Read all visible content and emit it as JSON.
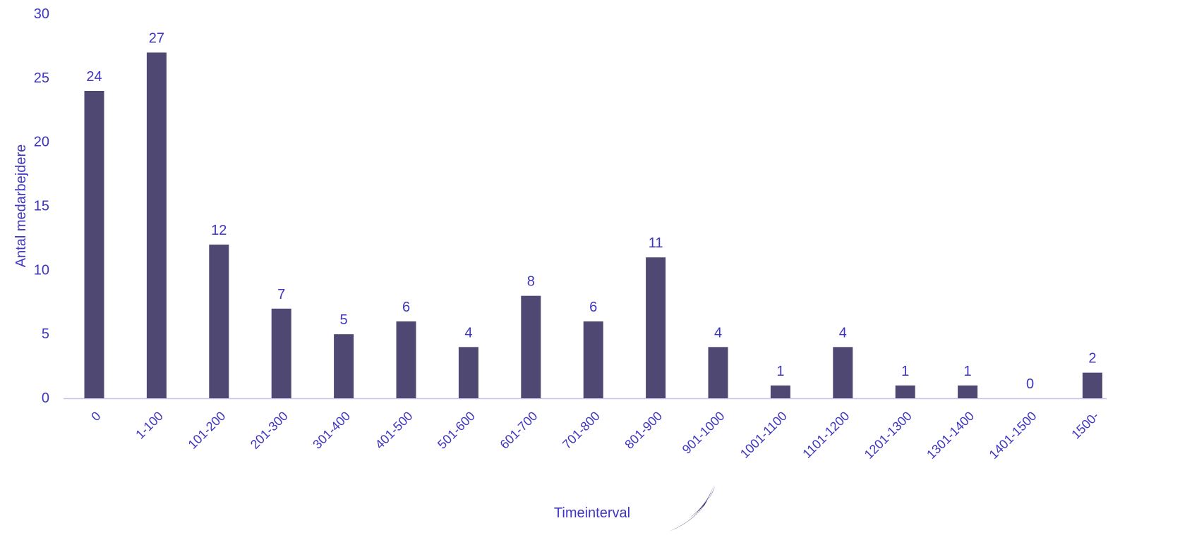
{
  "chart_data": {
    "type": "bar",
    "categories": [
      "0",
      "1-100",
      "101-200",
      "201-300",
      "301-400",
      "401-500",
      "501-600",
      "601-700",
      "701-800",
      "801-900",
      "901-1000",
      "1001-1100",
      "1101-1200",
      "1201-1300",
      "1301-1400",
      "1401-1500",
      "1500-"
    ],
    "values": [
      24,
      27,
      12,
      7,
      5,
      6,
      4,
      8,
      6,
      11,
      4,
      1,
      4,
      1,
      1,
      0,
      2
    ],
    "xlabel": "Timeinterval",
    "ylabel": "Antal medarbejdere",
    "ylim": [
      0,
      30
    ],
    "yticks": [
      0,
      5,
      10,
      15,
      20,
      25,
      30
    ],
    "grid": false,
    "data_labels": true
  },
  "colors": {
    "bar": "#4e4873",
    "text": "#3f36c0",
    "axis": "#c9c4ee",
    "logo": "#2a2260"
  }
}
